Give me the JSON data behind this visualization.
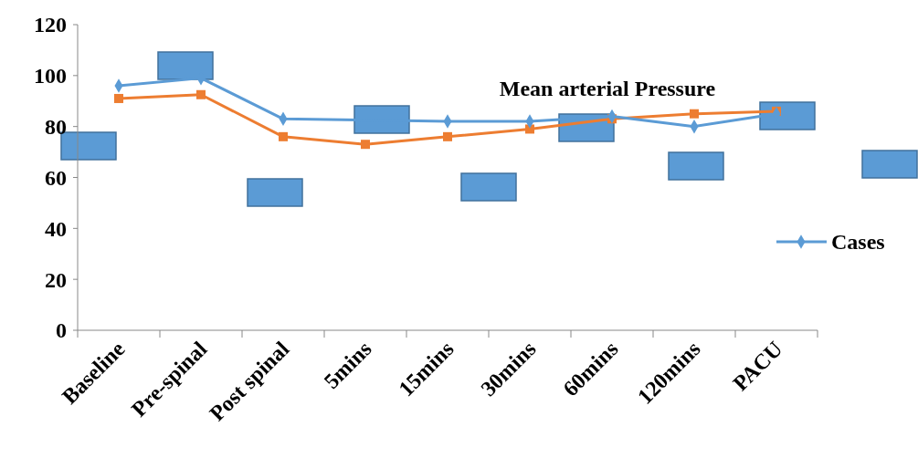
{
  "chart_data": {
    "type": "line",
    "title": "Mean arterial Pressure",
    "categories": [
      "Baseline",
      "Pre-spinal",
      "Post spinal",
      "5mins",
      "15mins",
      "30mins",
      "60mins",
      "120mins",
      "PACU"
    ],
    "series": [
      {
        "name": "Cases",
        "color": "#5b9bd5",
        "marker": "diamond",
        "values": [
          96,
          99,
          83,
          null,
          82,
          82,
          84,
          80,
          85
        ]
      },
      {
        "color": "#ed7d31",
        "marker": "square",
        "values": [
          91,
          92.5,
          76,
          73,
          76,
          79,
          83,
          85,
          86
        ]
      }
    ],
    "ylim": [
      0,
      120
    ],
    "yticks": [
      0,
      20,
      40,
      60,
      80,
      100,
      120
    ],
    "grid": false,
    "legend": "right"
  }
}
